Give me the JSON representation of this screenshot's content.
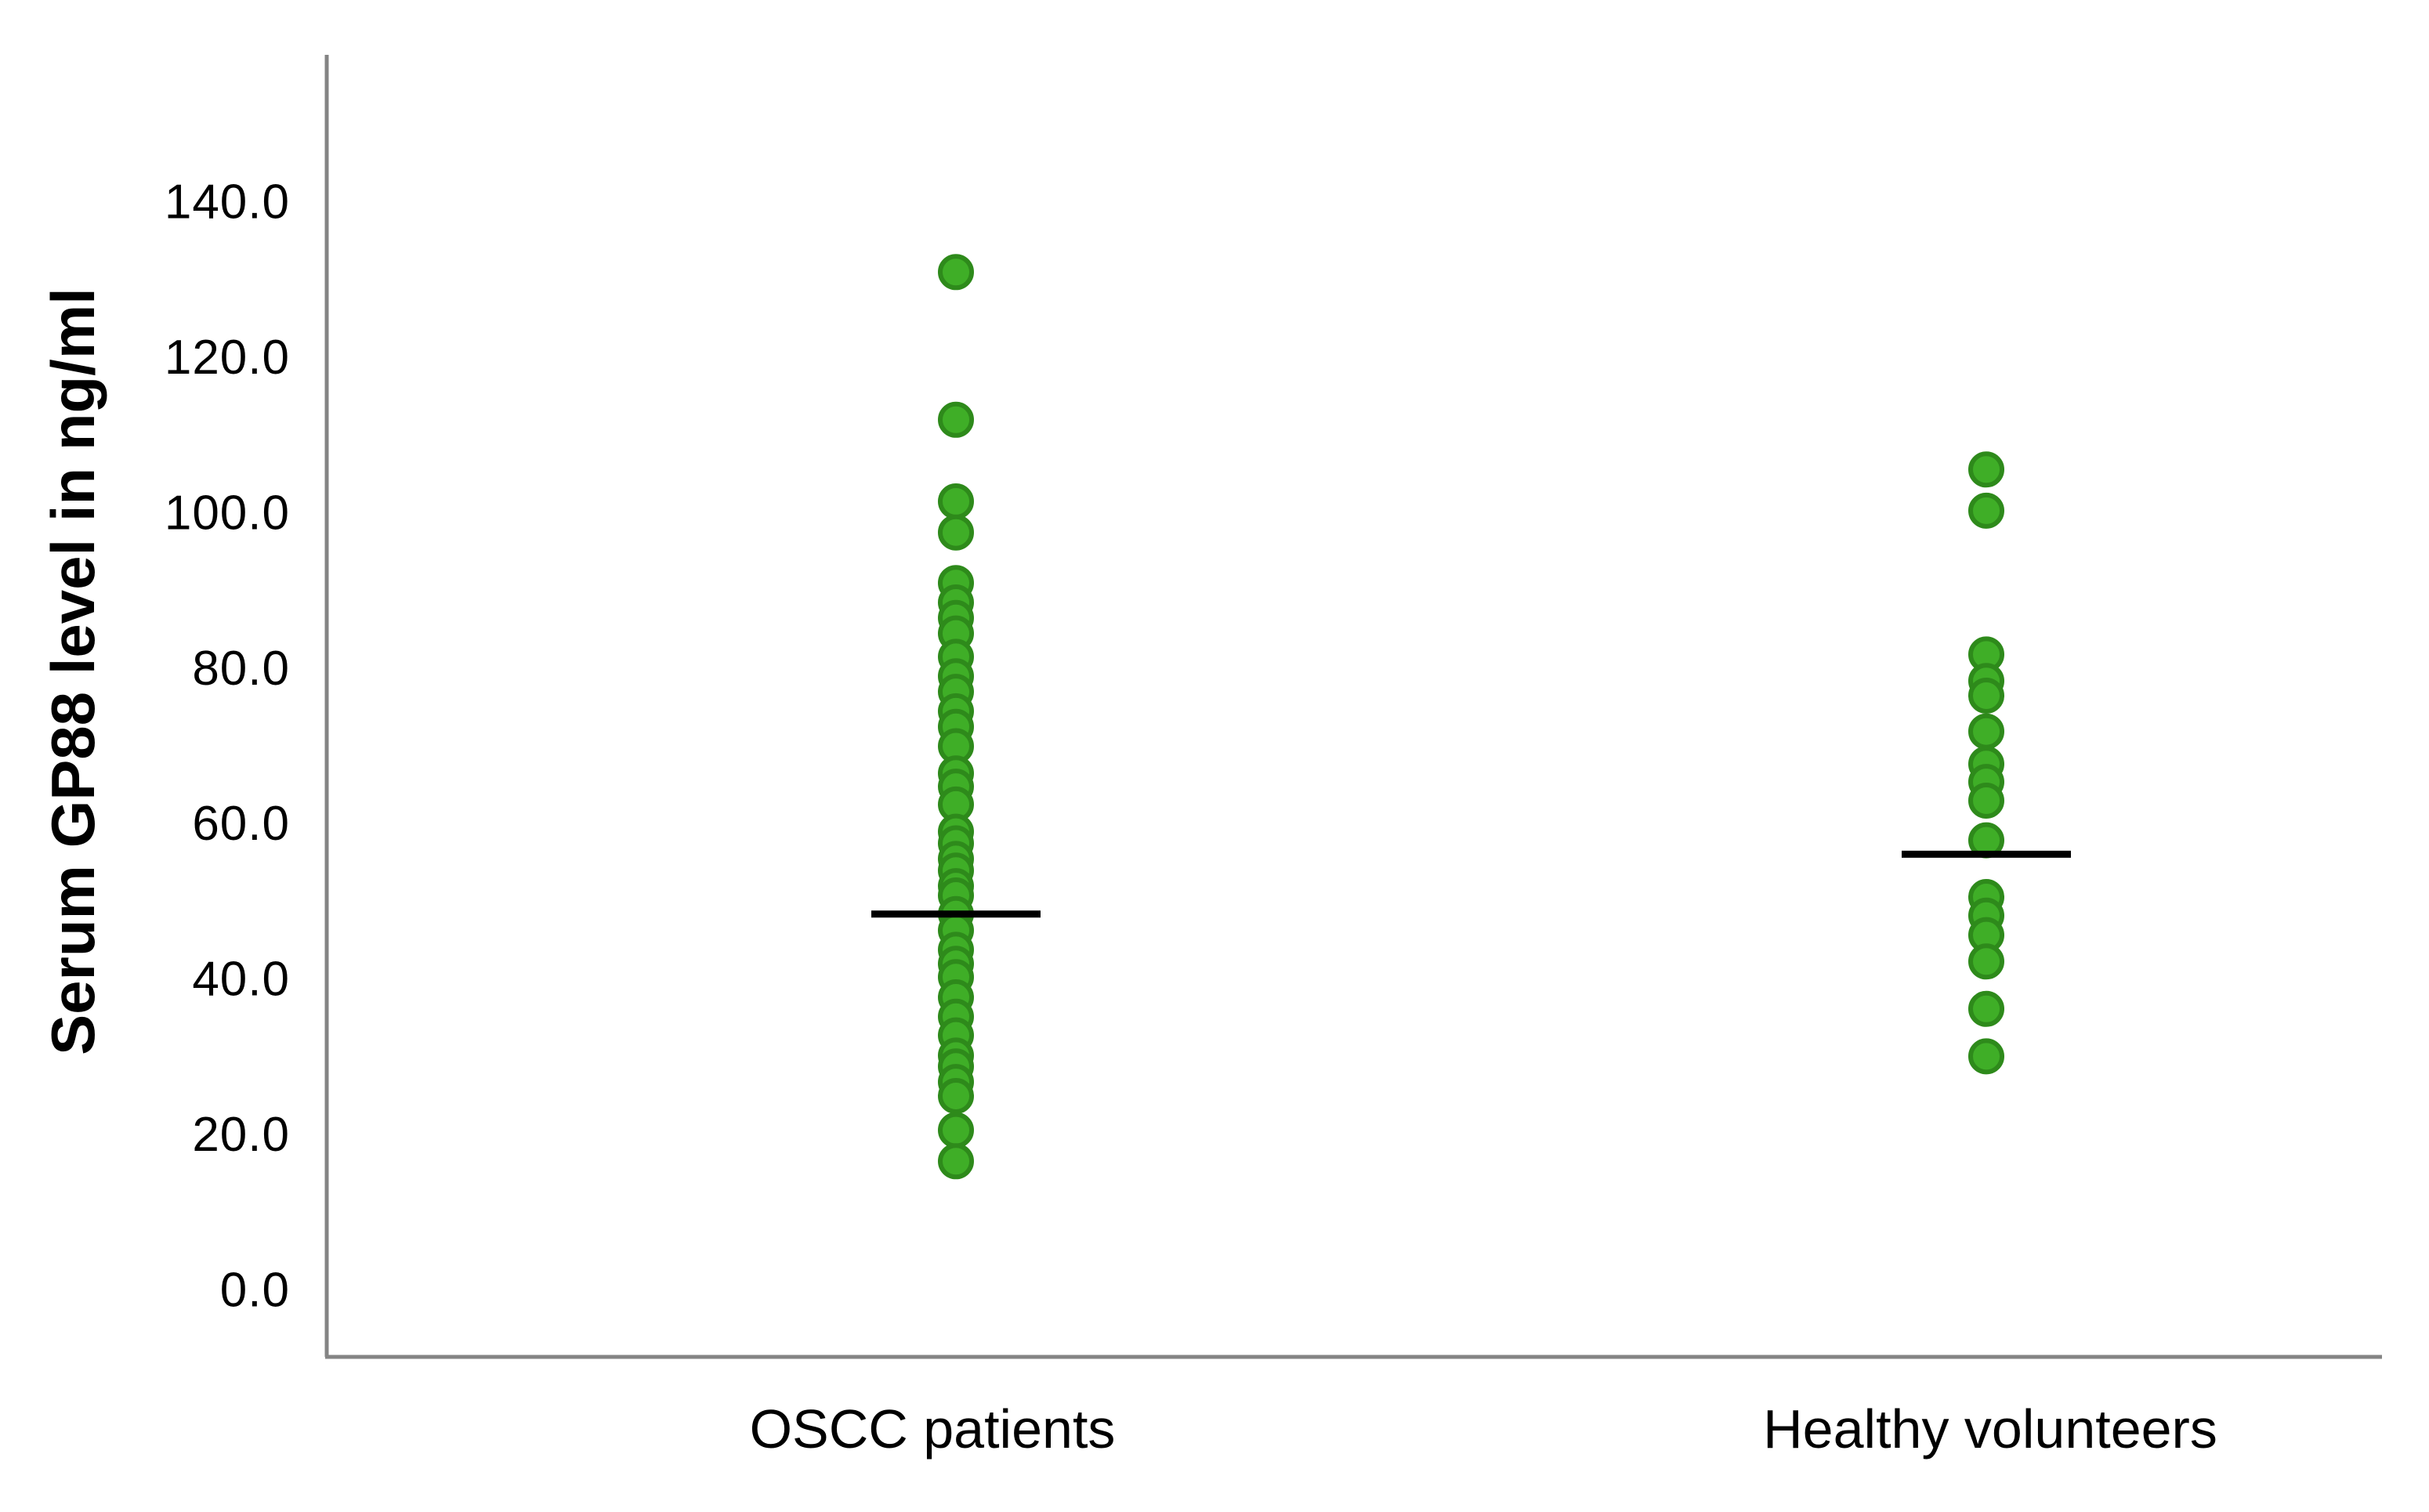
{
  "chart_data": {
    "type": "scatter",
    "subtype": "strip-plot-with-mean-lines",
    "title": "",
    "xlabel": "",
    "ylabel": "Serum GP88 level in ng/ml",
    "categories": [
      "OSCC patients",
      "Healthy volunteers"
    ],
    "y_ticks": [
      0.0,
      20.0,
      40.0,
      60.0,
      80.0,
      100.0,
      120.0,
      140.0
    ],
    "y_tick_labels": [
      "0.0",
      "20.0",
      "40.0",
      "60.0",
      "80.0",
      "100.0",
      "120.0",
      "140.0"
    ],
    "ylim": [
      0,
      157
    ],
    "grid": false,
    "legend": "none",
    "series": [
      {
        "name": "OSCC patients",
        "mean_marker": 48.4,
        "values": [
          131.0,
          112.0,
          101.5,
          97.5,
          91.0,
          88.5,
          86.5,
          84.5,
          81.5,
          79.0,
          77.0,
          74.5,
          72.5,
          70.0,
          66.5,
          64.8,
          62.5,
          59.0,
          57.5,
          55.5,
          54.0,
          52.0,
          50.8,
          48.4,
          46.3,
          43.8,
          42.0,
          40.3,
          37.7,
          35.2,
          32.8,
          30.2,
          28.8,
          26.8,
          25.0,
          20.6,
          16.6
        ]
      },
      {
        "name": "Healthy volunteers",
        "mean_marker": 56.1,
        "values": [
          105.6,
          100.3,
          81.8,
          78.4,
          76.5,
          71.9,
          67.7,
          65.4,
          63.0,
          57.9,
          50.6,
          48.2,
          45.7,
          42.3,
          36.2,
          30.1
        ]
      }
    ],
    "colors": {
      "point_fill": "#3fae27",
      "point_border": "#2e8a1b",
      "mean_line": "#000000",
      "axis_line": "#848484",
      "text": "#000000",
      "background": "#ffffff"
    }
  }
}
